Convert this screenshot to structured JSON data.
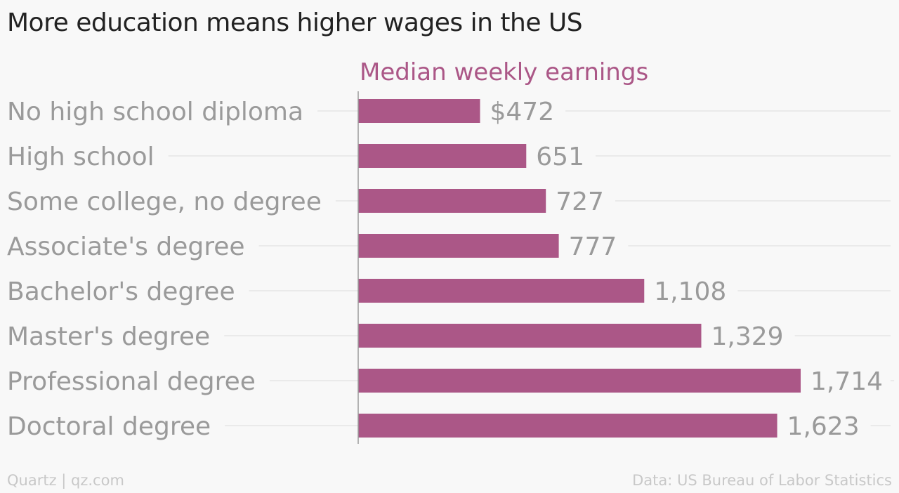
{
  "title": "More education means higher wages in the US",
  "footer": {
    "source_brand": "Quartz | qz.com",
    "data_source": "Data: US Bureau of Labor Statistics"
  },
  "colors": {
    "bar": "#ab5787",
    "series_label": "#ab5787",
    "category_label": "#9a9a9a",
    "value_label": "#9a9a9a",
    "gridline": "#e6e6e6",
    "axis": "#9a9a9a"
  },
  "chart_data": {
    "type": "bar",
    "orientation": "horizontal",
    "categories": [
      "No high school diploma",
      "High school",
      "Some college, no degree",
      "Associate's degree",
      "Bachelor's degree",
      "Master's degree",
      "Professional degree",
      "Doctoral degree"
    ],
    "series": [
      {
        "name": "Median weekly earnings",
        "values": [
          472,
          651,
          727,
          777,
          1108,
          1329,
          1714,
          1623
        ]
      }
    ],
    "value_labels": [
      "$472",
      "651",
      "727",
      "777",
      "1,108",
      "1,329",
      "1,714",
      "1,623"
    ],
    "xlim": [
      0,
      1714
    ],
    "grid": true,
    "legend": "top"
  }
}
